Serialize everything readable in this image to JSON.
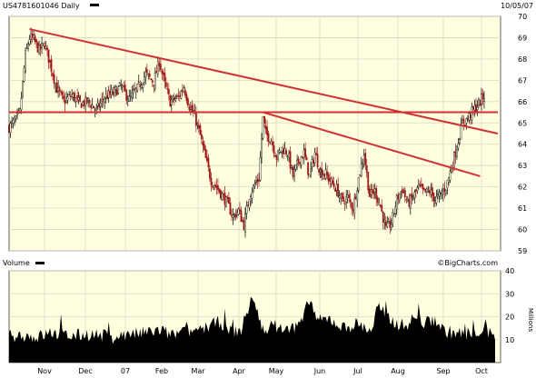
{
  "header": {
    "symbol_label": "US4781601046 Daily",
    "date": "10/05/07"
  },
  "volume_panel": {
    "label": "Volume",
    "watermark": "©BigCharts.com",
    "unit_label": "Millions"
  },
  "colors": {
    "plot_bg": "#FFFFE0",
    "grid": "#D8D8C8",
    "trendline": "#D03030",
    "up_candle": "#000000",
    "down_candle": "#A01818",
    "volume_fill": "#000000"
  },
  "chart_data": [
    {
      "type": "candlestick",
      "name": "price",
      "x_tick_labels": [
        "Nov",
        "Dec",
        "07",
        "Feb",
        "Mar",
        "Apr",
        "May",
        "Jun",
        "Jul",
        "Aug",
        "Sep",
        "Oct"
      ],
      "y_ticks": [
        59,
        60,
        61,
        62,
        63,
        64,
        65,
        66,
        67,
        68,
        69,
        70
      ],
      "ylim": [
        59,
        70
      ],
      "grid": true,
      "approx_close_path": [
        [
          0,
          64.8
        ],
        [
          5,
          65.1
        ],
        [
          8,
          65.5
        ],
        [
          12,
          68.2
        ],
        [
          15,
          69.0
        ],
        [
          18,
          68.9
        ],
        [
          22,
          68.4
        ],
        [
          26,
          68.7
        ],
        [
          30,
          67.8
        ],
        [
          35,
          66.6
        ],
        [
          40,
          66.0
        ],
        [
          46,
          66.3
        ],
        [
          52,
          65.9
        ],
        [
          58,
          66.0
        ],
        [
          64,
          65.6
        ],
        [
          70,
          66.2
        ],
        [
          76,
          66.4
        ],
        [
          82,
          66.7
        ],
        [
          88,
          66.1
        ],
        [
          94,
          66.6
        ],
        [
          100,
          67.3
        ],
        [
          106,
          66.9
        ],
        [
          110,
          67.9
        ],
        [
          114,
          66.8
        ],
        [
          118,
          66.0
        ],
        [
          124,
          66.2
        ],
        [
          128,
          66.7
        ],
        [
          132,
          65.8
        ],
        [
          136,
          65.3
        ],
        [
          140,
          64.4
        ],
        [
          144,
          63.3
        ],
        [
          148,
          62.3
        ],
        [
          152,
          62.0
        ],
        [
          156,
          61.6
        ],
        [
          160,
          61.2
        ],
        [
          164,
          60.6
        ],
        [
          168,
          60.9
        ],
        [
          172,
          60.2
        ],
        [
          176,
          61.6
        ],
        [
          180,
          62.1
        ],
        [
          183,
          62.4
        ],
        [
          186,
          65.2
        ],
        [
          188,
          64.5
        ],
        [
          192,
          64.2
        ],
        [
          196,
          63.4
        ],
        [
          200,
          63.8
        ],
        [
          204,
          63.6
        ],
        [
          208,
          62.5
        ],
        [
          212,
          63.2
        ],
        [
          216,
          63.6
        ],
        [
          220,
          62.5
        ],
        [
          224,
          63.6
        ],
        [
          228,
          62.7
        ],
        [
          232,
          62.6
        ],
        [
          236,
          62.2
        ],
        [
          240,
          61.9
        ],
        [
          244,
          61.3
        ],
        [
          248,
          61.5
        ],
        [
          252,
          61.0
        ],
        [
          256,
          62.4
        ],
        [
          260,
          63.6
        ],
        [
          264,
          61.6
        ],
        [
          268,
          61.8
        ],
        [
          272,
          61.1
        ],
        [
          276,
          60.0
        ],
        [
          280,
          60.3
        ],
        [
          284,
          61.4
        ],
        [
          288,
          61.9
        ],
        [
          292,
          61.2
        ],
        [
          296,
          61.5
        ],
        [
          300,
          62.0
        ],
        [
          304,
          61.7
        ],
        [
          308,
          61.8
        ],
        [
          312,
          61.4
        ],
        [
          316,
          61.6
        ],
        [
          320,
          62.0
        ],
        [
          324,
          62.9
        ],
        [
          328,
          63.9
        ],
        [
          332,
          65.0
        ],
        [
          336,
          65.2
        ],
        [
          340,
          65.6
        ],
        [
          344,
          65.9
        ],
        [
          348,
          66.3
        ]
      ],
      "trendlines": [
        {
          "start": [
            15,
            69.4
          ],
          "end": [
            358,
            64.5
          ],
          "color": "red"
        },
        {
          "start": [
            0,
            65.5
          ],
          "end": [
            358,
            65.5
          ],
          "color": "red",
          "kind": "horizontal"
        },
        {
          "start": [
            186,
            65.5
          ],
          "end": [
            345,
            62.5
          ],
          "color": "red"
        }
      ]
    },
    {
      "type": "bar",
      "name": "volume",
      "y_ticks": [
        10,
        20,
        30,
        40
      ],
      "ylim": [
        0,
        40
      ],
      "unit": "Millions",
      "grid": true,
      "approx_profile": [
        [
          0,
          11.5
        ],
        [
          10,
          12.0
        ],
        [
          20,
          11.0
        ],
        [
          30,
          13.0
        ],
        [
          45,
          11.5
        ],
        [
          60,
          12.5
        ],
        [
          75,
          11.0
        ],
        [
          85,
          12.0
        ],
        [
          100,
          13.0
        ],
        [
          110,
          14.0
        ],
        [
          120,
          12.0
        ],
        [
          135,
          14.0
        ],
        [
          145,
          15.5
        ],
        [
          155,
          18.0
        ],
        [
          160,
          13.5
        ],
        [
          170,
          14.0
        ],
        [
          178,
          29.0
        ],
        [
          185,
          15.0
        ],
        [
          195,
          16.0
        ],
        [
          205,
          14.0
        ],
        [
          215,
          18.0
        ],
        [
          220,
          28.0
        ],
        [
          226,
          18.0
        ],
        [
          235,
          19.0
        ],
        [
          245,
          15.0
        ],
        [
          255,
          17.0
        ],
        [
          265,
          14.0
        ],
        [
          272,
          25.0
        ],
        [
          280,
          18.0
        ],
        [
          290,
          16.0
        ],
        [
          298,
          20.0
        ],
        [
          305,
          17.0
        ],
        [
          312,
          19.0
        ],
        [
          318,
          14.0
        ],
        [
          325,
          13.0
        ],
        [
          335,
          12.5
        ],
        [
          345,
          14.0
        ],
        [
          355,
          12.0
        ]
      ]
    }
  ]
}
